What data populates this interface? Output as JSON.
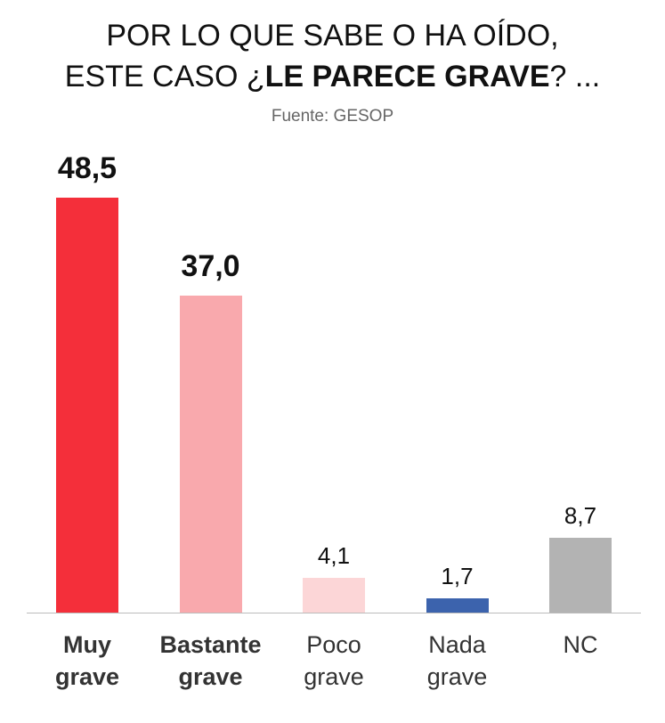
{
  "chart_data": {
    "type": "bar",
    "title": [
      "POR LO QUE SABE O HA OÍDO,",
      "ESTE CASO ¿",
      "LE PARECE GRAVE",
      "? ..."
    ],
    "subtitle": "Fuente: GESOP",
    "categories": [
      "Muy grave",
      "Bastante grave",
      "Poco grave",
      "Nada grave",
      "NC"
    ],
    "values": [
      48.5,
      37.0,
      4.1,
      1.7,
      8.7
    ],
    "value_labels": [
      "48,5",
      "37,0",
      "4,1",
      "1,7",
      "8,7"
    ],
    "colors": [
      "#f42f3a",
      "#f9a9ad",
      "#fcd6d7",
      "#3c63ad",
      "#b3b3b3"
    ],
    "highlight": [
      true,
      true,
      false,
      false,
      false
    ]
  }
}
